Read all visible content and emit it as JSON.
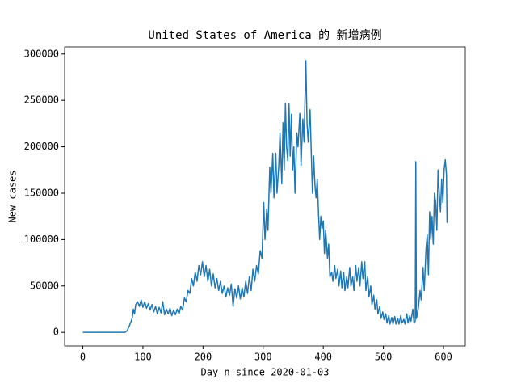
{
  "chart_data": {
    "type": "line",
    "title": "United States of America 的 新增病例",
    "xlabel": "Day n since 2020-01-03",
    "ylabel": "New cases",
    "x": [
      0,
      20,
      40,
      60,
      70,
      74,
      78,
      82,
      84,
      86,
      88,
      91,
      94,
      97,
      100,
      103,
      106,
      109,
      112,
      115,
      118,
      121,
      124,
      127,
      130,
      133,
      136,
      139,
      142,
      145,
      148,
      151,
      154,
      157,
      160,
      163,
      166,
      169,
      172,
      175,
      178,
      181,
      184,
      187,
      190,
      193,
      196,
      199,
      202,
      205,
      208,
      211,
      214,
      217,
      220,
      223,
      226,
      229,
      232,
      235,
      238,
      241,
      244,
      247,
      250,
      253,
      256,
      259,
      262,
      265,
      268,
      271,
      274,
      277,
      280,
      283,
      286,
      289,
      292,
      295,
      298,
      301,
      303,
      306,
      308,
      311,
      313,
      316,
      318,
      321,
      323,
      326,
      328,
      331,
      333,
      335,
      337,
      339,
      341,
      343,
      345,
      347,
      349,
      351,
      353,
      356,
      358,
      361,
      363,
      366,
      368,
      371,
      373,
      375,
      378,
      380,
      382,
      384,
      386,
      388,
      390,
      392,
      394,
      396,
      398,
      400,
      402,
      404,
      407,
      409,
      411,
      414,
      416,
      419,
      421,
      424,
      426,
      429,
      431,
      434,
      436,
      439,
      441,
      444,
      446,
      449,
      451,
      454,
      456,
      459,
      461,
      464,
      466,
      469,
      471,
      474,
      476,
      479,
      481,
      484,
      486,
      489,
      491,
      494,
      496,
      499,
      501,
      504,
      506,
      509,
      511,
      514,
      516,
      519,
      521,
      524,
      526,
      529,
      531,
      534,
      536,
      539,
      541,
      544,
      546,
      549,
      551,
      553,
      554,
      555,
      558,
      561,
      563,
      566,
      568,
      571,
      573,
      575,
      577,
      579,
      581,
      583,
      585,
      587,
      589,
      591,
      593,
      595,
      597,
      599,
      601,
      603,
      605,
      606
    ],
    "series": [
      {
        "color": "#1f77b4",
        "values": [
          0,
          0,
          0,
          0,
          0,
          2000,
          8000,
          15000,
          25000,
          20000,
          30000,
          33000,
          28000,
          35000,
          27000,
          33000,
          26000,
          31000,
          24000,
          30000,
          22000,
          28000,
          20000,
          27000,
          21000,
          33000,
          19000,
          25000,
          20000,
          26000,
          18000,
          24000,
          19000,
          25000,
          20000,
          28000,
          24000,
          37000,
          33000,
          45000,
          42000,
          58000,
          50000,
          65000,
          55000,
          72000,
          62000,
          76000,
          60000,
          72000,
          55000,
          68000,
          50000,
          63000,
          48000,
          58000,
          45000,
          55000,
          42000,
          50000,
          38000,
          48000,
          40000,
          52000,
          28000,
          47000,
          37000,
          50000,
          36000,
          48000,
          38000,
          55000,
          42000,
          60000,
          45000,
          68000,
          55000,
          72000,
          63000,
          88000,
          80000,
          140000,
          100000,
          133000,
          110000,
          178000,
          150000,
          193000,
          145000,
          193000,
          150000,
          180000,
          215000,
          160000,
          226000,
          175000,
          247000,
          200000,
          185000,
          246000,
          190000,
          235000,
          175000,
          200000,
          150000,
          215000,
          200000,
          236000,
          180000,
          230000,
          205000,
          293000,
          225000,
          205000,
          240000,
          195000,
          150000,
          190000,
          160000,
          145000,
          165000,
          130000,
          100000,
          125000,
          112000,
          120000,
          85000,
          110000,
          80000,
          95000,
          60000,
          65000,
          55000,
          72000,
          58000,
          68000,
          50000,
          66000,
          48000,
          65000,
          45000,
          60000,
          48000,
          70000,
          50000,
          60000,
          45000,
          72000,
          55000,
          70000,
          50000,
          76000,
          58000,
          76000,
          45000,
          60000,
          38000,
          50000,
          30000,
          40000,
          25000,
          35000,
          20000,
          28000,
          15000,
          22000,
          14000,
          20000,
          10000,
          18000,
          9000,
          16000,
          9000,
          17000,
          9000,
          15000,
          9000,
          18000,
          10000,
          14000,
          9000,
          20000,
          10000,
          18000,
          12000,
          25000,
          10000,
          12000,
          184000,
          15000,
          25000,
          45000,
          35000,
          70000,
          45000,
          90000,
          105000,
          62000,
          130000,
          100000,
          125000,
          95000,
          150000,
          140000,
          110000,
          175000,
          150000,
          130000,
          165000,
          140000,
          175000,
          186000,
          170000,
          118000
        ]
      }
    ],
    "xlim": [
      -30.3,
      636.3
    ],
    "ylim": [
      -14650,
      307650
    ],
    "xticks": [
      0,
      100,
      200,
      300,
      400,
      500,
      600
    ],
    "yticks": [
      0,
      50000,
      100000,
      150000,
      200000,
      250000,
      300000
    ]
  }
}
